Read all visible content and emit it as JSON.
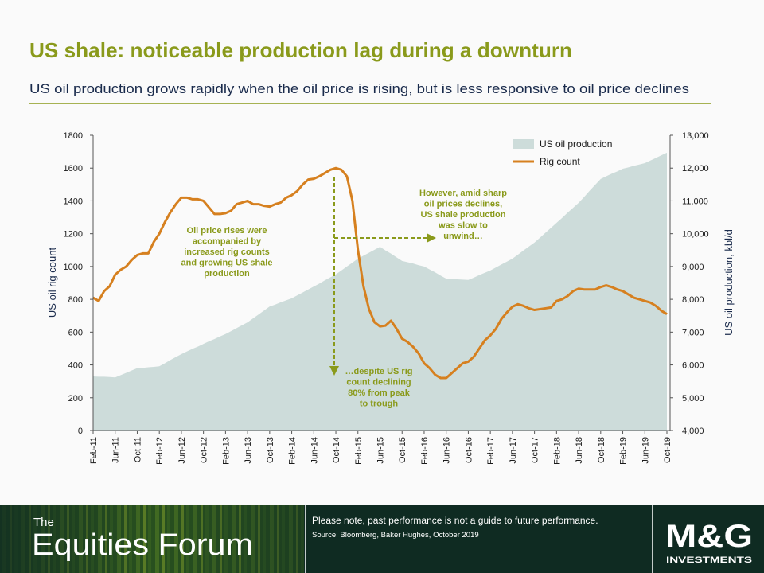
{
  "header": {
    "title": "US shale: noticeable production lag during a downturn",
    "subtitle": "US oil production grows rapidly when the oil price is rising, but is less responsive to oil price declines"
  },
  "chart_data": {
    "type": "area-line",
    "ylabel": "US oil rig count",
    "y2label": "US oil production, kbl/d",
    "ylim": [
      0,
      1800
    ],
    "yticks": [
      0,
      200,
      400,
      600,
      800,
      1000,
      1200,
      1400,
      1600,
      1800
    ],
    "y2lim": [
      4000,
      13000
    ],
    "y2ticks": [
      {
        "value": 4000,
        "label": "4,000"
      },
      {
        "value": 5000,
        "label": "5,000"
      },
      {
        "value": 6000,
        "label": "6,000"
      },
      {
        "value": 7000,
        "label": "7,000"
      },
      {
        "value": 8000,
        "label": "8,000"
      },
      {
        "value": 9000,
        "label": "9,000"
      },
      {
        "value": 10000,
        "label": "10,000"
      },
      {
        "value": 11000,
        "label": "11,000"
      },
      {
        "value": 12000,
        "label": "12,000"
      },
      {
        "value": 13000,
        "label": "13,000"
      }
    ],
    "categories": [
      "Feb-11",
      null,
      null,
      null,
      "Jun-11",
      null,
      null,
      null,
      "Oct-11",
      null,
      null,
      null,
      "Feb-12",
      null,
      null,
      null,
      "Jun-12",
      null,
      null,
      null,
      "Oct-12",
      null,
      null,
      null,
      "Feb-13",
      null,
      null,
      null,
      "Jun-13",
      null,
      null,
      null,
      "Oct-13",
      null,
      null,
      null,
      "Feb-14",
      null,
      null,
      null,
      "Jun-14",
      null,
      null,
      null,
      "Oct-14",
      null,
      null,
      null,
      "Feb-15",
      null,
      null,
      null,
      "Jun-15",
      null,
      null,
      null,
      "Oct-15",
      null,
      null,
      null,
      "Feb-16",
      null,
      null,
      null,
      "Jun-16",
      null,
      null,
      null,
      "Oct-16",
      null,
      null,
      null,
      "Feb-17",
      null,
      null,
      null,
      "Jun-17",
      null,
      null,
      null,
      "Oct-17",
      null,
      null,
      null,
      "Feb-18",
      null,
      null,
      null,
      "Jun-18",
      null,
      null,
      null,
      "Oct-18",
      null,
      null,
      null,
      "Feb-19",
      null,
      null,
      null,
      "Jun-19",
      null,
      null,
      null,
      "Oct-19"
    ],
    "series": [
      {
        "name": "US oil production",
        "color": "#cddcda",
        "axis": "y2",
        "kind": "area",
        "values": [
          5650,
          5640,
          5640,
          5630,
          5620,
          5690,
          5760,
          5830,
          5900,
          5910,
          5930,
          5940,
          5960,
          6050,
          6150,
          6240,
          6330,
          6410,
          6490,
          6560,
          6640,
          6720,
          6790,
          6870,
          6940,
          7030,
          7120,
          7210,
          7300,
          7420,
          7540,
          7660,
          7780,
          7840,
          7910,
          7970,
          8030,
          8120,
          8210,
          8300,
          8390,
          8480,
          8580,
          8670,
          8760,
          8880,
          9000,
          9120,
          9240,
          9330,
          9420,
          9510,
          9600,
          9490,
          9390,
          9280,
          9170,
          9130,
          9090,
          9040,
          9000,
          8910,
          8820,
          8720,
          8630,
          8620,
          8610,
          8600,
          8590,
          8660,
          8740,
          8810,
          8880,
          8970,
          9060,
          9150,
          9240,
          9360,
          9490,
          9610,
          9730,
          9880,
          10030,
          10180,
          10330,
          10480,
          10640,
          10790,
          10940,
          11120,
          11310,
          11490,
          11670,
          11750,
          11830,
          11900,
          11980,
          12020,
          12070,
          12110,
          12150,
          12230,
          12310,
          12390,
          12470
        ]
      },
      {
        "name": "Rig count",
        "color": "#d6801f",
        "axis": "y",
        "kind": "line",
        "values": [
          810,
          790,
          850,
          880,
          950,
          980,
          1000,
          1040,
          1070,
          1080,
          1080,
          1150,
          1200,
          1270,
          1330,
          1380,
          1420,
          1420,
          1410,
          1410,
          1400,
          1360,
          1320,
          1320,
          1325,
          1340,
          1380,
          1390,
          1400,
          1380,
          1380,
          1370,
          1365,
          1380,
          1390,
          1420,
          1435,
          1460,
          1500,
          1530,
          1535,
          1550,
          1570,
          1590,
          1600,
          1590,
          1550,
          1400,
          1100,
          880,
          740,
          660,
          635,
          640,
          670,
          620,
          560,
          540,
          510,
          470,
          410,
          380,
          340,
          320,
          320,
          350,
          380,
          410,
          420,
          450,
          500,
          550,
          580,
          620,
          680,
          720,
          755,
          770,
          760,
          745,
          735,
          740,
          745,
          750,
          790,
          800,
          820,
          850,
          865,
          860,
          860,
          860,
          875,
          885,
          875,
          860,
          850,
          830,
          810,
          800,
          790,
          780,
          760,
          730,
          710
        ]
      }
    ],
    "legend": "top-right",
    "annotations": [
      {
        "lines": [
          "Oil price rises were",
          "accompanied by",
          "increased rig counts",
          "and growing US shale",
          "production"
        ]
      },
      {
        "lines": [
          "However, amid sharp",
          "oil prices declines,",
          "US shale production",
          "was slow to",
          "unwind…"
        ]
      },
      {
        "lines": [
          "…despite US rig",
          "count declining",
          "80% from peak",
          "to trough"
        ]
      }
    ]
  },
  "footer": {
    "brand_small": "The",
    "brand": "Equities Forum",
    "disclaimer": "Please note, past performance  is not a guide to future performance.",
    "source": "Source: Bloomberg, Baker Hughes, October 2019",
    "logo": "M&G",
    "logo_sub": "INVESTMENTS"
  }
}
